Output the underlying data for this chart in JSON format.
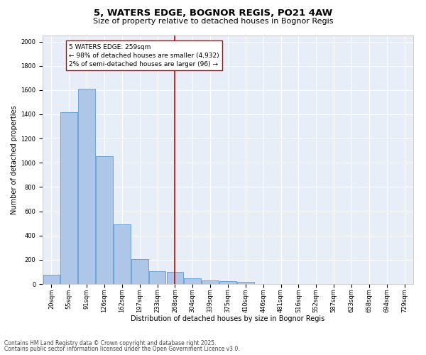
{
  "title": "5, WATERS EDGE, BOGNOR REGIS, PO21 4AW",
  "subtitle": "Size of property relative to detached houses in Bognor Regis",
  "xlabel": "Distribution of detached houses by size in Bognor Regis",
  "ylabel": "Number of detached properties",
  "categories": [
    "20sqm",
    "55sqm",
    "91sqm",
    "126sqm",
    "162sqm",
    "197sqm",
    "233sqm",
    "268sqm",
    "304sqm",
    "339sqm",
    "375sqm",
    "410sqm",
    "446sqm",
    "481sqm",
    "516sqm",
    "552sqm",
    "587sqm",
    "623sqm",
    "658sqm",
    "694sqm",
    "729sqm"
  ],
  "values": [
    75,
    1420,
    1610,
    1055,
    490,
    205,
    105,
    100,
    45,
    30,
    25,
    20,
    0,
    0,
    0,
    0,
    0,
    0,
    0,
    0,
    0
  ],
  "bar_color": "#aec6e8",
  "bar_edge_color": "#5b9bd5",
  "vline_x_index": 7,
  "vline_color": "#cc0000",
  "annotation_line1": "5 WATERS EDGE: 259sqm",
  "annotation_line2": "← 98% of detached houses are smaller (4,932)",
  "annotation_line3": "2% of semi-detached houses are larger (96) →",
  "annotation_box_color": "#ffffff",
  "annotation_box_edge_color": "#cc0000",
  "ylim": [
    0,
    2050
  ],
  "yticks": [
    0,
    200,
    400,
    600,
    800,
    1000,
    1200,
    1400,
    1600,
    1800,
    2000
  ],
  "background_color": "#e8eef8",
  "grid_color": "#ffffff",
  "footer1": "Contains HM Land Registry data © Crown copyright and database right 2025.",
  "footer2": "Contains public sector information licensed under the Open Government Licence v3.0.",
  "title_fontsize": 9.5,
  "subtitle_fontsize": 8,
  "label_fontsize": 7,
  "tick_fontsize": 6,
  "annotation_fontsize": 6.5,
  "footer_fontsize": 5.5
}
